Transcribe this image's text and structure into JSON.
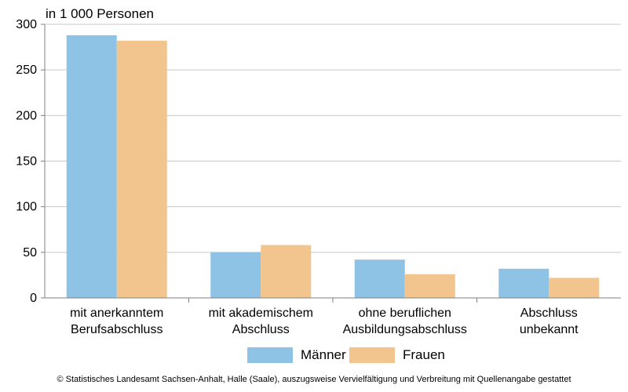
{
  "chart_data": {
    "type": "bar",
    "unit_label": "in 1 000 Personen",
    "categories": [
      [
        "mit anerkanntem",
        "Berufsabschluss"
      ],
      [
        "mit akademischem",
        "Abschluss"
      ],
      [
        "ohne beruflichen",
        "Ausbildungsabschluss"
      ],
      [
        "Abschluss",
        "unbekannt"
      ]
    ],
    "series": [
      {
        "name": "Männer",
        "color": "#8ec3e6",
        "values": [
          288,
          50,
          42,
          32
        ]
      },
      {
        "name": "Frauen",
        "color": "#f2c48e",
        "values": [
          282,
          58,
          26,
          22
        ]
      }
    ],
    "ylim": [
      0,
      300
    ],
    "yticks": [
      0,
      50,
      100,
      150,
      200,
      250,
      300
    ],
    "grid": true,
    "legend_position": "bottom"
  },
  "footer": "© Statistisches Landesamt Sachsen-Anhalt, Halle (Saale), auszugsweise Vervielfältigung und Verbreitung mit Quellenangabe gestattet"
}
